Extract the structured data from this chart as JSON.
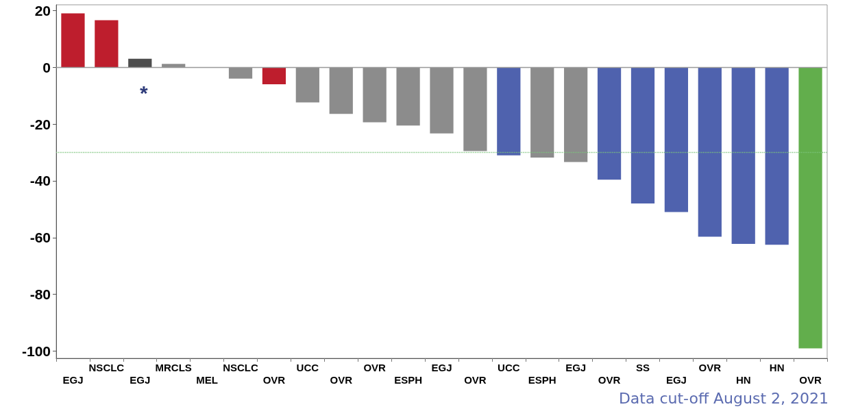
{
  "chart_data": {
    "type": "bar",
    "categories": [
      "EGJ",
      "NSCLC",
      "EGJ",
      "MRCLS",
      "MEL",
      "NSCLC",
      "OVR",
      "UCC",
      "OVR",
      "OVR",
      "ESPH",
      "EGJ",
      "OVR",
      "UCC",
      "ESPH",
      "EGJ",
      "OVR",
      "SS",
      "EGJ",
      "OVR",
      "HN",
      "HN",
      "OVR"
    ],
    "values": [
      19,
      16.6,
      3,
      1.2,
      0,
      -4,
      -6,
      -12.4,
      -16.4,
      -19.4,
      -20.5,
      -23.3,
      -29.5,
      -31,
      -31.8,
      -33.4,
      -39.6,
      -48,
      -51,
      -59.7,
      -62.2,
      -62.5,
      -99
    ],
    "colors": [
      "#be1e2d",
      "#be1e2d",
      "#4d4d4d",
      "#8c8c8c",
      "#8c8c8c",
      "#8c8c8c",
      "#be1e2d",
      "#8c8c8c",
      "#8c8c8c",
      "#8c8c8c",
      "#8c8c8c",
      "#8c8c8c",
      "#8c8c8c",
      "#4f62ae",
      "#8c8c8c",
      "#8c8c8c",
      "#4f62ae",
      "#4f62ae",
      "#4f62ae",
      "#4f62ae",
      "#4f62ae",
      "#4f62ae",
      "#62ae4c"
    ],
    "ylim": [
      -102.5,
      22
    ],
    "yticks": [
      -100,
      -80,
      -60,
      -40,
      -20,
      0,
      20
    ],
    "grid": false,
    "ref_lines": [
      {
        "axis": "y",
        "value": 0,
        "color": "#999999",
        "line_style": "solid"
      },
      {
        "axis": "y",
        "value": -30,
        "color": "#7cc47c",
        "line_style": "dotted"
      }
    ],
    "annotations": [
      "*",
      "Data cut-off August 2, 2021"
    ]
  }
}
